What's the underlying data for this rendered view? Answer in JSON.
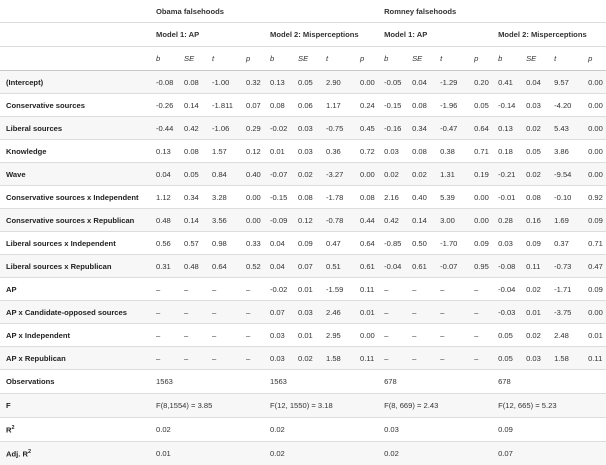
{
  "header": {
    "groups": [
      {
        "label": "Obama falsehoods"
      },
      {
        "label": "Romney falsehoods"
      }
    ],
    "models": [
      {
        "label": "Model 1: AP"
      },
      {
        "label": "Model 2: Misperceptions"
      },
      {
        "label": "Model 1: AP"
      },
      {
        "label": "Model 2: Misperceptions"
      }
    ],
    "stats": [
      "b",
      "SE",
      "t",
      "p"
    ]
  },
  "rows": [
    {
      "label": "(Intercept)",
      "values": [
        "-0.08",
        "0.08",
        "-1.00",
        "0.32",
        "0.13",
        "0.05",
        "2.90",
        "0.00",
        "-0.05",
        "0.04",
        "-1.29",
        "0.20",
        "0.41",
        "0.04",
        "9.57",
        "0.00"
      ]
    },
    {
      "label": "Conservative sources",
      "values": [
        "-0.26",
        "0.14",
        "-1.811",
        "0.07",
        "0.08",
        "0.06",
        "1.17",
        "0.24",
        "-0.15",
        "0.08",
        "-1.96",
        "0.05",
        "-0.14",
        "0.03",
        "-4.20",
        "0.00"
      ]
    },
    {
      "label": "Liberal sources",
      "values": [
        "-0.44",
        "0.42",
        "-1.06",
        "0.29",
        "-0.02",
        "0.03",
        "-0.75",
        "0.45",
        "-0.16",
        "0.34",
        "-0.47",
        "0.64",
        "0.13",
        "0.02",
        "5.43",
        "0.00"
      ]
    },
    {
      "label": "Knowledge",
      "values": [
        "0.13",
        "0.08",
        "1.57",
        "0.12",
        "0.01",
        "0.03",
        "0.36",
        "0.72",
        "0.03",
        "0.08",
        "0.38",
        "0.71",
        "0.18",
        "0.05",
        "3.86",
        "0.00"
      ]
    },
    {
      "label": "Wave",
      "values": [
        "0.04",
        "0.05",
        "0.84",
        "0.40",
        "-0.07",
        "0.02",
        "-3.27",
        "0.00",
        "0.02",
        "0.02",
        "1.31",
        "0.19",
        "-0.21",
        "0.02",
        "-9.54",
        "0.00"
      ]
    },
    {
      "label": "Conservative sources x Independent",
      "values": [
        "1.12",
        "0.34",
        "3.28",
        "0.00",
        "-0.15",
        "0.08",
        "-1.78",
        "0.08",
        "2.16",
        "0.40",
        "5.39",
        "0.00",
        "-0.01",
        "0.08",
        "-0.10",
        "0.92"
      ]
    },
    {
      "label": "Conservative sources x Republican",
      "values": [
        "0.48",
        "0.14",
        "3.56",
        "0.00",
        "-0.09",
        "0.12",
        "-0.78",
        "0.44",
        "0.42",
        "0.14",
        "3.00",
        "0.00",
        "0.28",
        "0.16",
        "1.69",
        "0.09"
      ]
    },
    {
      "label": "Liberal sources x Independent",
      "values": [
        "0.56",
        "0.57",
        "0.98",
        "0.33",
        "0.04",
        "0.09",
        "0.47",
        "0.64",
        "-0.85",
        "0.50",
        "-1.70",
        "0.09",
        "0.03",
        "0.09",
        "0.37",
        "0.71"
      ]
    },
    {
      "label": "Liberal sources x Republican",
      "values": [
        "0.31",
        "0.48",
        "0.64",
        "0.52",
        "0.04",
        "0.07",
        "0.51",
        "0.61",
        "-0.04",
        "0.61",
        "-0.07",
        "0.95",
        "-0.08",
        "0.11",
        "-0.73",
        "0.47"
      ]
    },
    {
      "label": "AP",
      "values": [
        "–",
        "–",
        "–",
        "–",
        "-0.02",
        "0.01",
        "-1.59",
        "0.11",
        "–",
        "–",
        "–",
        "–",
        "-0.04",
        "0.02",
        "-1.71",
        "0.09"
      ]
    },
    {
      "label": "AP x Candidate-opposed sources",
      "values": [
        "–",
        "–",
        "–",
        "–",
        "0.07",
        "0.03",
        "2.46",
        "0.01",
        "–",
        "–",
        "–",
        "–",
        "-0.03",
        "0.01",
        "-3.75",
        "0.00"
      ]
    },
    {
      "label": "AP x Independent",
      "values": [
        "–",
        "–",
        "–",
        "–",
        "0.03",
        "0.01",
        "2.95",
        "0.00",
        "–",
        "–",
        "–",
        "–",
        "0.05",
        "0.02",
        "2.48",
        "0.01"
      ]
    },
    {
      "label": "AP x Republican",
      "values": [
        "–",
        "–",
        "–",
        "–",
        "0.03",
        "0.02",
        "1.58",
        "0.11",
        "–",
        "–",
        "–",
        "–",
        "0.05",
        "0.03",
        "1.58",
        "0.11"
      ]
    }
  ],
  "summary": [
    {
      "label": "Observations",
      "label_sup": "",
      "values": [
        "1563",
        "1563",
        "678",
        "678"
      ]
    },
    {
      "label": "F",
      "label_sup": "",
      "values": [
        "F(8,1554) = 3.85",
        "F(12, 1550) = 3.18",
        "F(8, 669) = 2.43",
        "F(12, 665) = 5.23"
      ]
    },
    {
      "label": "R",
      "label_sup": "2",
      "values": [
        "0.02",
        "0.02",
        "0.03",
        "0.09"
      ]
    },
    {
      "label": "Adj. R",
      "label_sup": "2",
      "values": [
        "0.01",
        "0.02",
        "0.02",
        "0.07"
      ]
    }
  ]
}
